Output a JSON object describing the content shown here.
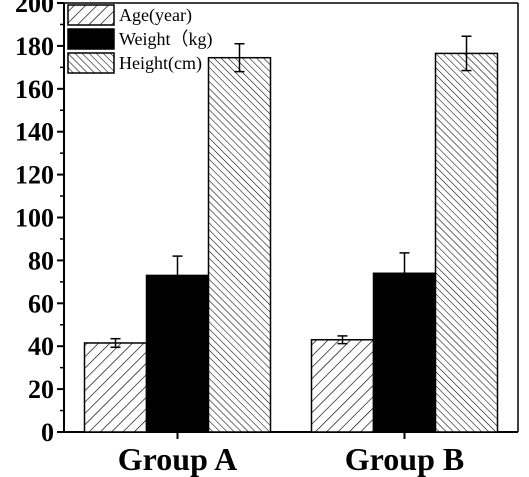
{
  "chart_data": {
    "type": "bar",
    "categories": [
      "Group A",
      "Group B"
    ],
    "series": [
      {
        "name": "Age(year)",
        "values": [
          41.5,
          43.0
        ],
        "errors": [
          2.0,
          1.8
        ],
        "fill": "hatch-sparse"
      },
      {
        "name": "Weight（kg)",
        "values": [
          73.0,
          74.0
        ],
        "errors": [
          9.0,
          9.5
        ],
        "fill": "solid"
      },
      {
        "name": "Height(cm)",
        "values": [
          174.5,
          176.5
        ],
        "errors": [
          6.5,
          8.0
        ],
        "fill": "hatch-dense"
      }
    ],
    "title": "",
    "xlabel": "",
    "ylabel": "",
    "ylim": [
      0,
      200
    ],
    "yticks": [
      "0",
      "20",
      "40",
      "60",
      "80",
      "100",
      "120",
      "140",
      "160",
      "180",
      "200"
    ],
    "grid": false,
    "legend_position": "top-left",
    "colors": {
      "bar_outline": "#000000",
      "solid_fill": "#000000",
      "hatch": "#000000",
      "background": "#ffffff"
    }
  }
}
